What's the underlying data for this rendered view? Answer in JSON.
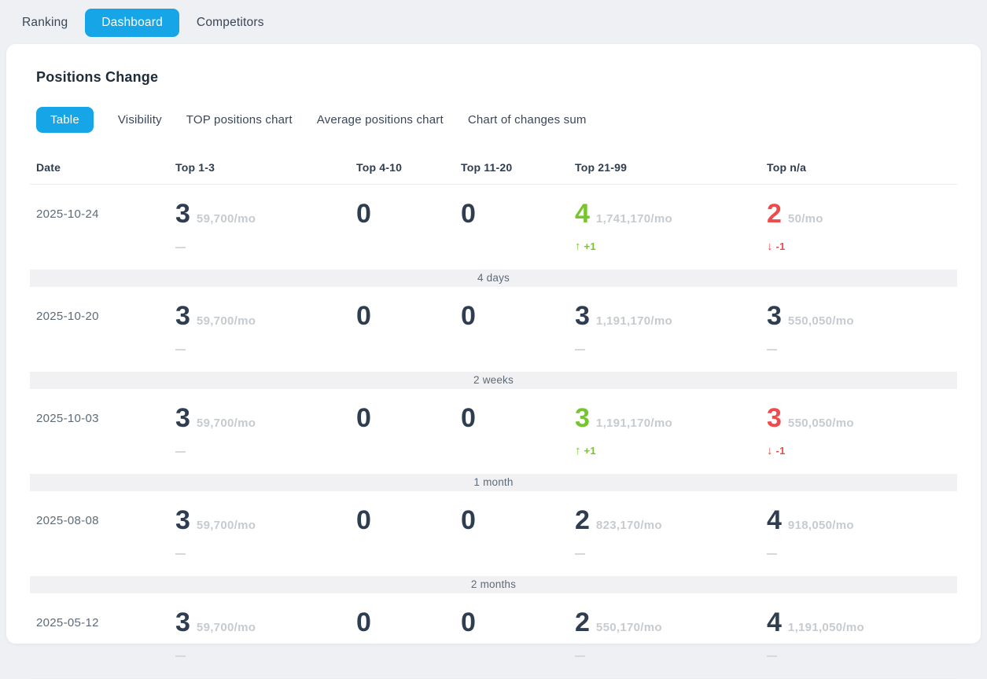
{
  "top_tabs": [
    {
      "label": "Ranking",
      "active": false
    },
    {
      "label": "Dashboard",
      "active": true
    },
    {
      "label": "Competitors",
      "active": false
    }
  ],
  "panel": {
    "title": "Positions Change"
  },
  "sub_tabs": [
    {
      "label": "Table",
      "active": true
    },
    {
      "label": "Visibility",
      "active": false
    },
    {
      "label": "TOP positions chart",
      "active": false
    },
    {
      "label": "Average positions chart",
      "active": false
    },
    {
      "label": "Chart of changes sum",
      "active": false
    }
  ],
  "colors": {
    "accent_blue": "#16a5e6",
    "positive_green": "#76c52e",
    "negative_red": "#ee4c4c"
  },
  "table": {
    "columns": [
      "Date",
      "Top 1-3",
      "Top 4-10",
      "Top 11-20",
      "Top 21-99",
      "Top n/a"
    ],
    "rows": [
      {
        "date": "2025-10-24",
        "cells": [
          {
            "value": "3",
            "color": "dark",
            "volume": "59,700/mo",
            "change": {
              "type": "dash"
            }
          },
          {
            "value": "0",
            "color": "dark",
            "volume": null,
            "change": null
          },
          {
            "value": "0",
            "color": "dark",
            "volume": null,
            "change": null
          },
          {
            "value": "4",
            "color": "green",
            "volume": "1,741,170/mo",
            "change": {
              "type": "up",
              "label": "+1"
            }
          },
          {
            "value": "2",
            "color": "red",
            "volume": "50/mo",
            "change": {
              "type": "down",
              "label": "-1"
            }
          }
        ]
      },
      {
        "date": "2025-10-20",
        "cells": [
          {
            "value": "3",
            "color": "dark",
            "volume": "59,700/mo",
            "change": {
              "type": "dash"
            }
          },
          {
            "value": "0",
            "color": "dark",
            "volume": null,
            "change": null
          },
          {
            "value": "0",
            "color": "dark",
            "volume": null,
            "change": null
          },
          {
            "value": "3",
            "color": "dark",
            "volume": "1,191,170/mo",
            "change": {
              "type": "dash"
            }
          },
          {
            "value": "3",
            "color": "dark",
            "volume": "550,050/mo",
            "change": {
              "type": "dash"
            }
          }
        ]
      },
      {
        "date": "2025-10-03",
        "cells": [
          {
            "value": "3",
            "color": "dark",
            "volume": "59,700/mo",
            "change": {
              "type": "dash"
            }
          },
          {
            "value": "0",
            "color": "dark",
            "volume": null,
            "change": null
          },
          {
            "value": "0",
            "color": "dark",
            "volume": null,
            "change": null
          },
          {
            "value": "3",
            "color": "green",
            "volume": "1,191,170/mo",
            "change": {
              "type": "up",
              "label": "+1"
            }
          },
          {
            "value": "3",
            "color": "red",
            "volume": "550,050/mo",
            "change": {
              "type": "down",
              "label": "-1"
            }
          }
        ]
      },
      {
        "date": "2025-08-08",
        "cells": [
          {
            "value": "3",
            "color": "dark",
            "volume": "59,700/mo",
            "change": {
              "type": "dash"
            }
          },
          {
            "value": "0",
            "color": "dark",
            "volume": null,
            "change": null
          },
          {
            "value": "0",
            "color": "dark",
            "volume": null,
            "change": null
          },
          {
            "value": "2",
            "color": "dark",
            "volume": "823,170/mo",
            "change": {
              "type": "dash"
            }
          },
          {
            "value": "4",
            "color": "dark",
            "volume": "918,050/mo",
            "change": {
              "type": "dash"
            }
          }
        ]
      },
      {
        "date": "2025-05-12",
        "cells": [
          {
            "value": "3",
            "color": "dark",
            "volume": "59,700/mo",
            "change": {
              "type": "dash"
            }
          },
          {
            "value": "0",
            "color": "dark",
            "volume": null,
            "change": null
          },
          {
            "value": "0",
            "color": "dark",
            "volume": null,
            "change": null
          },
          {
            "value": "2",
            "color": "dark",
            "volume": "550,170/mo",
            "change": {
              "type": "dash"
            }
          },
          {
            "value": "4",
            "color": "dark",
            "volume": "1,191,050/mo",
            "change": {
              "type": "dash"
            }
          }
        ]
      }
    ],
    "gaps_after_row": [
      "4 days",
      "2 weeks",
      "1 month",
      "2 months"
    ],
    "change_icons": {
      "up": "arrow-up-icon",
      "down": "arrow-down-icon",
      "none": "no-change-dash"
    }
  }
}
